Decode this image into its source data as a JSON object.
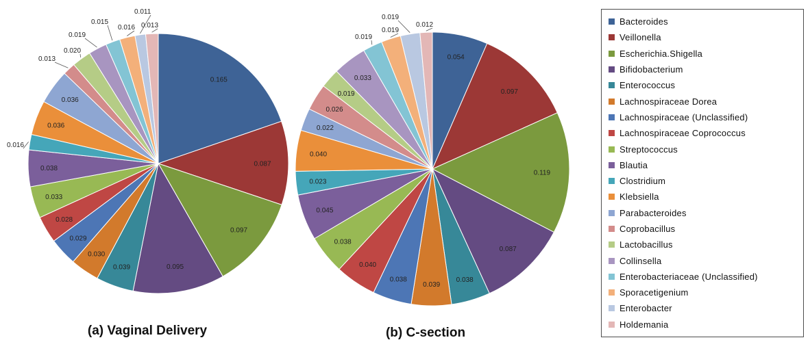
{
  "chart_data": [
    {
      "type": "pie",
      "title": "(a) Vaginal Delivery",
      "slices": [
        {
          "name": "Bacteroides",
          "value": 0.165
        },
        {
          "name": "Veillonella",
          "value": 0.087
        },
        {
          "name": "Escherichia.Shigella",
          "value": 0.097
        },
        {
          "name": "Bifidobacterium",
          "value": 0.095
        },
        {
          "name": "Enterococcus",
          "value": 0.039
        },
        {
          "name": "Lachnospiraceae Dorea",
          "value": 0.03
        },
        {
          "name": "Lachnospiraceae (Unclassified)",
          "value": 0.029
        },
        {
          "name": "Lachnospiraceae Coprococcus",
          "value": 0.028
        },
        {
          "name": "Streptococcus",
          "value": 0.033
        },
        {
          "name": "Blautia",
          "value": 0.038
        },
        {
          "name": "Clostridium",
          "value": 0.016
        },
        {
          "name": "Klebsiella",
          "value": 0.036
        },
        {
          "name": "Parabacteroides",
          "value": 0.036
        },
        {
          "name": "Coprobacillus",
          "value": 0.013
        },
        {
          "name": "Lactobacillus",
          "value": 0.02
        },
        {
          "name": "Collinsella",
          "value": 0.019
        },
        {
          "name": "Enterobacteriaceae (Unclassified)",
          "value": 0.015
        },
        {
          "name": "Sporacetigenium",
          "value": 0.016
        },
        {
          "name": "Enterobacter",
          "value": 0.011
        },
        {
          "name": "Holdemania",
          "value": 0.013
        }
      ],
      "labels": [
        "0.165",
        "0.087",
        "0.097",
        "0.095",
        "0.039",
        "0.030",
        "0.029",
        "0.028",
        "0.033",
        "0.038",
        "0.016",
        "0.036",
        "0.036",
        "0.013",
        "0.020",
        "0.019",
        "0.015",
        "0.016",
        "0.011",
        "0.013"
      ]
    },
    {
      "type": "pie",
      "title": "(b) C-section",
      "slices": [
        {
          "name": "Bacteroides",
          "value": 0.054
        },
        {
          "name": "Veillonella",
          "value": 0.097
        },
        {
          "name": "Escherichia.Shigella",
          "value": 0.119
        },
        {
          "name": "Bifidobacterium",
          "value": 0.087
        },
        {
          "name": "Enterococcus",
          "value": 0.038
        },
        {
          "name": "Lachnospiraceae Dorea",
          "value": 0.039
        },
        {
          "name": "Lachnospiraceae (Unclassified)",
          "value": 0.038
        },
        {
          "name": "Lachnospiraceae Coprococcus",
          "value": 0.04
        },
        {
          "name": "Streptococcus",
          "value": 0.038
        },
        {
          "name": "Blautia",
          "value": 0.045
        },
        {
          "name": "Clostridium",
          "value": 0.023
        },
        {
          "name": "Klebsiella",
          "value": 0.04
        },
        {
          "name": "Parabacteroides",
          "value": 0.022
        },
        {
          "name": "Coprobacillus",
          "value": 0.026
        },
        {
          "name": "Lactobacillus",
          "value": 0.019
        },
        {
          "name": "Collinsella",
          "value": 0.033
        },
        {
          "name": "Enterobacteriaceae (Unclassified)",
          "value": 0.019
        },
        {
          "name": "Sporacetigenium",
          "value": 0.019
        },
        {
          "name": "Enterobacter",
          "value": 0.019
        },
        {
          "name": "Holdemania",
          "value": 0.012
        }
      ],
      "labels": [
        "0.054",
        "0.097",
        "0.119",
        "0.087",
        "0.038",
        "0.039",
        "0.038",
        "0.040",
        "0.038",
        "0.045",
        "0.023",
        "0.040",
        "0.022",
        "0.026",
        "0.019",
        "0.033",
        "0.019",
        "0.019",
        "0.019",
        "0.012"
      ]
    }
  ],
  "legend": {
    "position": "right",
    "items": [
      {
        "label": "Bacteroides",
        "color": "#3e6396"
      },
      {
        "label": "Veillonella",
        "color": "#9c3836"
      },
      {
        "label": "Escherichia.Shigella",
        "color": "#7b9a3e"
      },
      {
        "label": "Bifidobacterium",
        "color": "#644b82"
      },
      {
        "label": "Enterococcus",
        "color": "#378898"
      },
      {
        "label": "Lachnospiraceae Dorea",
        "color": "#d27a2c"
      },
      {
        "label": "Lachnospiraceae (Unclassified)",
        "color": "#4d76b5"
      },
      {
        "label": "Lachnospiraceae Coprococcus",
        "color": "#bf4744"
      },
      {
        "label": "Streptococcus",
        "color": "#98b954"
      },
      {
        "label": "Blautia",
        "color": "#7b5f9b"
      },
      {
        "label": "Clostridium",
        "color": "#45a6b9"
      },
      {
        "label": "Klebsiella",
        "color": "#ea8f3a"
      },
      {
        "label": "Parabacteroides",
        "color": "#8ea6d2"
      },
      {
        "label": "Coprobacillus",
        "color": "#d38c8b"
      },
      {
        "label": "Lactobacillus",
        "color": "#b5cc86"
      },
      {
        "label": "Collinsella",
        "color": "#a895c0"
      },
      {
        "label": "Enterobacteriaceae (Unclassified)",
        "color": "#83c4d4"
      },
      {
        "label": "Sporacetigenium",
        "color": "#f3b07a"
      },
      {
        "label": "Enterobacter",
        "color": "#b9c8e1"
      },
      {
        "label": "Holdemania",
        "color": "#e3b7b6"
      }
    ]
  }
}
